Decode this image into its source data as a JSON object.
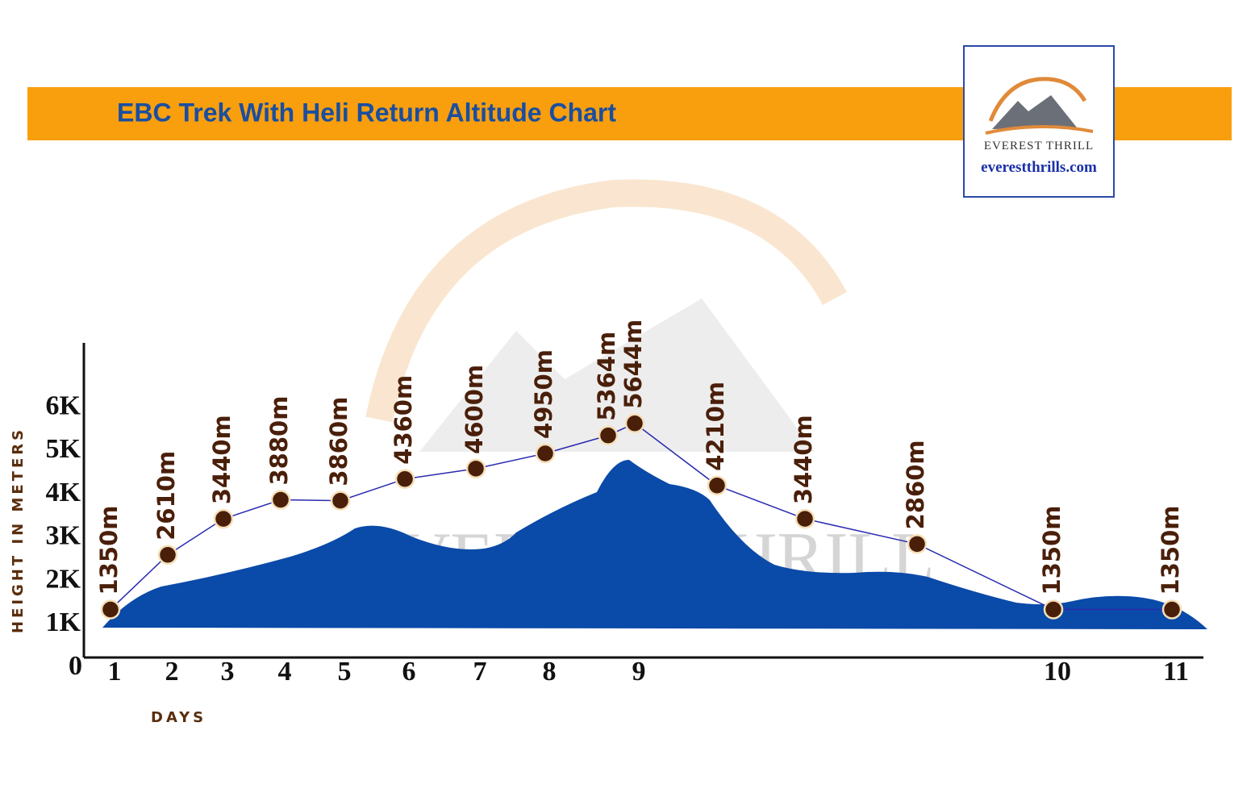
{
  "chart_data": {
    "type": "line",
    "title": "EBC Trek With Heli Return Altitude Chart",
    "y_label": "HEIGHT IN METERS",
    "x_label": "DAYS",
    "categories": [
      "1",
      "2",
      "3",
      "4",
      "5",
      "6",
      "7",
      "8",
      null,
      "9",
      null,
      null,
      null,
      "10",
      "11"
    ],
    "values": [
      1350,
      2610,
      3440,
      3880,
      3860,
      4360,
      4600,
      4950,
      5364,
      5644,
      4210,
      3440,
      2860,
      1350,
      1350
    ],
    "value_labels": [
      "1350m",
      "2610m",
      "3440m",
      "3880m",
      "3860m",
      "4360m",
      "4600m",
      "4950m",
      "5364m",
      "5644m",
      "4210m",
      "3440m",
      "2860m",
      "1350m",
      "1350m"
    ],
    "color": "#2a2ab0",
    "ylim": [
      0,
      7500
    ],
    "yticks": [
      0,
      {
        "value": 1000,
        "label": "1K"
      },
      {
        "value": 2000,
        "label": "2K"
      },
      {
        "value": 3000,
        "label": "3K"
      },
      {
        "value": 4000,
        "label": "4K"
      },
      {
        "value": 5000,
        "label": "5K"
      },
      {
        "value": 6000,
        "label": "6K"
      }
    ],
    "grid": false
  },
  "logo": {
    "name": "EVEREST THRILL",
    "url": "everestthrills.com"
  }
}
